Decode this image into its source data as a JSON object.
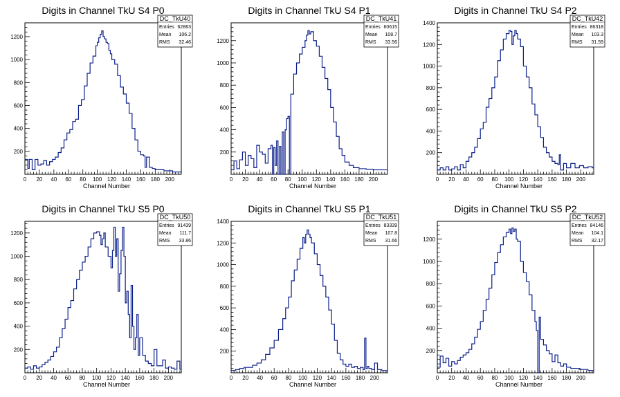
{
  "chart_data": [
    {
      "type": "line",
      "title": "Digits in Channel TkU S4 P0",
      "xlabel": "Channel Number",
      "ylabel": "",
      "xlim": [
        0,
        216
      ],
      "ylim": [
        0,
        1320
      ],
      "xticks": [
        0,
        20,
        40,
        60,
        80,
        100,
        120,
        140,
        160,
        180,
        200
      ],
      "yticks": [
        200,
        400,
        600,
        800,
        1000,
        1200
      ],
      "stats": {
        "name": "DC_TkU40",
        "entries": "62863",
        "mean": "106.2",
        "rms": "32.46"
      },
      "series": [
        {
          "x": [
            0,
            4,
            6,
            10,
            14,
            18,
            22,
            26,
            30,
            34,
            38,
            42,
            46,
            50,
            54,
            58,
            62,
            66,
            70,
            74,
            78,
            82,
            86,
            90,
            94,
            98,
            100,
            102,
            104,
            106,
            108,
            110,
            112,
            114,
            116,
            118,
            120,
            124,
            128,
            132,
            136,
            140,
            144,
            148,
            152,
            156,
            160,
            164,
            166,
            168,
            172,
            176,
            180,
            186,
            192,
            198,
            204,
            210,
            216
          ],
          "y": [
            130,
            50,
            130,
            40,
            130,
            80,
            90,
            120,
            80,
            110,
            130,
            150,
            190,
            230,
            300,
            360,
            390,
            460,
            480,
            600,
            650,
            770,
            880,
            970,
            1030,
            1120,
            1150,
            1190,
            1220,
            1250,
            1200,
            1180,
            1150,
            1140,
            1080,
            1050,
            1000,
            960,
            860,
            760,
            700,
            620,
            530,
            400,
            300,
            200,
            170,
            160,
            60,
            150,
            60,
            50,
            40,
            40,
            30,
            30,
            20,
            20,
            20
          ]
        }
      ]
    },
    {
      "type": "line",
      "title": "Digits in Channel TkU S4 P1",
      "xlabel": "Channel Number",
      "ylabel": "",
      "xlim": [
        0,
        220
      ],
      "ylim": [
        0,
        1360
      ],
      "xticks": [
        0,
        20,
        40,
        60,
        80,
        100,
        120,
        140,
        160,
        180,
        200
      ],
      "yticks": [
        200,
        400,
        600,
        800,
        1000,
        1200
      ],
      "stats": {
        "name": "DC_TkU41",
        "entries": "60615",
        "mean": "108.7",
        "rms": "33.56"
      },
      "series": [
        {
          "x": [
            0,
            4,
            8,
            12,
            16,
            20,
            24,
            28,
            32,
            36,
            40,
            44,
            48,
            52,
            56,
            58,
            60,
            62,
            64,
            66,
            68,
            70,
            72,
            74,
            76,
            78,
            80,
            82,
            84,
            88,
            92,
            96,
            100,
            104,
            106,
            108,
            110,
            112,
            116,
            120,
            124,
            128,
            132,
            136,
            140,
            144,
            148,
            152,
            156,
            160,
            166,
            172,
            180,
            190,
            200,
            210,
            220
          ],
          "y": [
            40,
            120,
            50,
            130,
            200,
            80,
            170,
            140,
            60,
            260,
            200,
            180,
            100,
            230,
            260,
            0,
            240,
            80,
            300,
            0,
            250,
            0,
            380,
            0,
            400,
            500,
            520,
            0,
            720,
            900,
            1000,
            1080,
            1140,
            1200,
            1250,
            1290,
            1260,
            1280,
            1200,
            1150,
            1060,
            960,
            860,
            760,
            600,
            470,
            340,
            230,
            170,
            110,
            80,
            60,
            50,
            45,
            40,
            40,
            35
          ]
        }
      ]
    },
    {
      "type": "line",
      "title": "Digits in Channel TkU S4 P2",
      "xlabel": "Channel Number",
      "ylabel": "",
      "xlim": [
        0,
        218
      ],
      "ylim": [
        0,
        1400
      ],
      "xticks": [
        0,
        20,
        40,
        60,
        80,
        100,
        120,
        140,
        160,
        180,
        200
      ],
      "yticks": [
        200,
        400,
        600,
        800,
        1000,
        1200,
        1400
      ],
      "stats": {
        "name": "DC_TkU42",
        "entries": "86318",
        "mean": "103.3",
        "rms": "31.59"
      },
      "series": [
        {
          "x": [
            0,
            4,
            8,
            12,
            16,
            20,
            24,
            28,
            32,
            36,
            40,
            44,
            48,
            52,
            56,
            60,
            64,
            68,
            72,
            76,
            80,
            84,
            88,
            92,
            96,
            100,
            102,
            104,
            106,
            108,
            110,
            112,
            116,
            120,
            124,
            128,
            132,
            136,
            140,
            144,
            148,
            152,
            156,
            160,
            164,
            168,
            170,
            172,
            176,
            180,
            186,
            192,
            198,
            204,
            210,
            216
          ],
          "y": [
            40,
            60,
            40,
            70,
            40,
            50,
            70,
            40,
            90,
            60,
            120,
            160,
            200,
            250,
            330,
            420,
            480,
            620,
            700,
            800,
            900,
            1050,
            1150,
            1250,
            1300,
            1330,
            1320,
            1200,
            1280,
            1330,
            1300,
            1250,
            1180,
            1000,
            900,
            800,
            650,
            550,
            440,
            340,
            250,
            200,
            160,
            120,
            100,
            90,
            180,
            40,
            100,
            60,
            100,
            60,
            80,
            60,
            70,
            60
          ]
        }
      ]
    },
    {
      "type": "line",
      "title": "Digits in Channel TkU S5 P0",
      "xlabel": "Channel Number",
      "ylabel": "",
      "xlim": [
        0,
        218
      ],
      "ylim": [
        0,
        1300
      ],
      "xticks": [
        0,
        20,
        40,
        60,
        80,
        100,
        120,
        140,
        160,
        180,
        200
      ],
      "yticks": [
        200,
        400,
        600,
        800,
        1000,
        1200
      ],
      "stats": {
        "name": "DC_TkU50",
        "entries": "91439",
        "mean": "111.7",
        "rms": "33.86"
      },
      "series": [
        {
          "x": [
            0,
            4,
            8,
            12,
            16,
            20,
            24,
            28,
            32,
            36,
            40,
            44,
            48,
            52,
            56,
            60,
            64,
            68,
            72,
            76,
            80,
            84,
            88,
            92,
            96,
            100,
            104,
            106,
            108,
            110,
            112,
            116,
            120,
            122,
            124,
            126,
            128,
            130,
            132,
            134,
            136,
            138,
            140,
            142,
            144,
            146,
            148,
            150,
            152,
            154,
            156,
            158,
            160,
            164,
            168,
            172,
            176,
            180,
            184,
            188,
            192,
            196,
            200,
            204,
            208,
            212,
            216
          ],
          "y": [
            40,
            50,
            30,
            60,
            40,
            50,
            70,
            90,
            110,
            140,
            180,
            220,
            300,
            380,
            460,
            560,
            620,
            720,
            800,
            880,
            950,
            1000,
            1080,
            1150,
            1200,
            1210,
            1180,
            1100,
            1150,
            1200,
            1080,
            1000,
            900,
            1050,
            1250,
            1000,
            1150,
            700,
            850,
            1050,
            1250,
            1000,
            600,
            700,
            500,
            300,
            750,
            400,
            200,
            300,
            500,
            150,
            300,
            150,
            100,
            80,
            60,
            200,
            60,
            60,
            110,
            40,
            50,
            40,
            30,
            100,
            30
          ]
        }
      ]
    },
    {
      "type": "line",
      "title": "Digits in Channel TkU S5 P1",
      "xlabel": "Channel Number",
      "ylabel": "",
      "xlim": [
        0,
        218
      ],
      "ylim": [
        0,
        1400
      ],
      "xticks": [
        0,
        20,
        40,
        60,
        80,
        100,
        120,
        140,
        160,
        180,
        200
      ],
      "yticks": [
        200,
        400,
        600,
        800,
        1000,
        1200,
        1400
      ],
      "stats": {
        "name": "DC_TkU51",
        "entries": "83339",
        "mean": "107.8",
        "rms": "31.66"
      },
      "series": [
        {
          "x": [
            0,
            6,
            12,
            18,
            24,
            30,
            36,
            42,
            48,
            54,
            60,
            66,
            72,
            76,
            80,
            84,
            88,
            92,
            96,
            100,
            102,
            104,
            106,
            108,
            110,
            112,
            116,
            120,
            124,
            128,
            132,
            136,
            140,
            144,
            148,
            152,
            156,
            160,
            164,
            168,
            172,
            176,
            180,
            184,
            186,
            188,
            190,
            192,
            196,
            200,
            204,
            210,
            216
          ],
          "y": [
            20,
            30,
            40,
            50,
            50,
            70,
            90,
            120,
            170,
            230,
            300,
            400,
            500,
            600,
            700,
            850,
            950,
            1050,
            1150,
            1250,
            1200,
            1280,
            1320,
            1280,
            1250,
            1200,
            1100,
            1000,
            900,
            800,
            700,
            580,
            450,
            300,
            180,
            120,
            80,
            60,
            80,
            50,
            60,
            40,
            50,
            30,
            320,
            40,
            60,
            40,
            30,
            90,
            30,
            20,
            20
          ]
        }
      ]
    },
    {
      "type": "line",
      "title": "Digits in Channel TkU S5 P2",
      "xlabel": "Channel Number",
      "ylabel": "",
      "xlim": [
        0,
        218
      ],
      "ylim": [
        0,
        1360
      ],
      "xticks": [
        0,
        20,
        40,
        60,
        80,
        100,
        120,
        140,
        160,
        180,
        200
      ],
      "yticks": [
        200,
        400,
        600,
        800,
        1000,
        1200
      ],
      "stats": {
        "name": "DC_TkU52",
        "entries": "84146",
        "mean": "104.1",
        "rms": "32.17"
      },
      "series": [
        {
          "x": [
            0,
            4,
            8,
            12,
            16,
            20,
            24,
            28,
            32,
            36,
            40,
            44,
            48,
            52,
            56,
            60,
            64,
            68,
            72,
            76,
            80,
            84,
            88,
            92,
            96,
            100,
            102,
            104,
            106,
            108,
            110,
            112,
            116,
            120,
            124,
            128,
            132,
            136,
            138,
            140,
            142,
            144,
            148,
            152,
            156,
            160,
            164,
            168,
            172,
            176,
            180,
            186,
            192,
            198,
            204,
            210,
            216
          ],
          "y": [
            50,
            150,
            90,
            130,
            60,
            100,
            80,
            110,
            140,
            160,
            180,
            210,
            260,
            320,
            390,
            460,
            560,
            660,
            760,
            880,
            990,
            1080,
            1150,
            1220,
            1260,
            1290,
            1250,
            1300,
            1270,
            1290,
            1200,
            1180,
            1000,
            900,
            820,
            700,
            560,
            460,
            380,
            0,
            500,
            300,
            250,
            200,
            170,
            100,
            160,
            90,
            60,
            80,
            50,
            40,
            40,
            30,
            30,
            20,
            20
          ]
        }
      ]
    }
  ]
}
